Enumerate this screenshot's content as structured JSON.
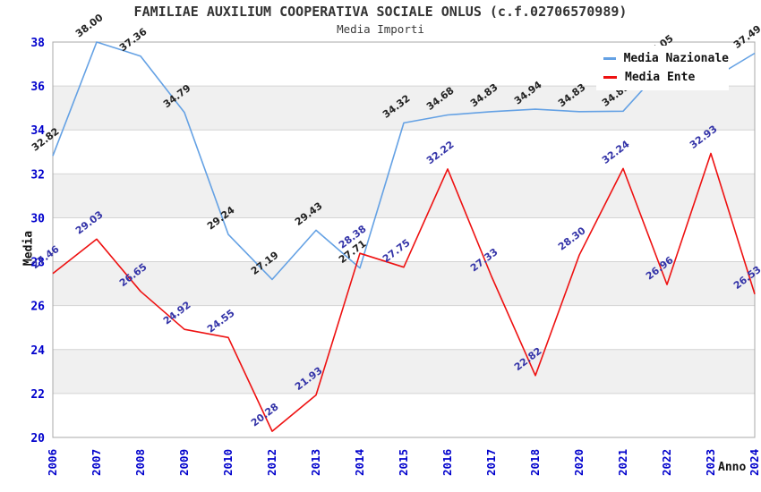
{
  "chart": {
    "title": "FAMILIAE AUXILIUM COOPERATIVA SOCIALE ONLUS (c.f.02706570989)",
    "subtitle": "Media Importi"
  },
  "chart_data": {
    "type": "line",
    "title": "FAMILIAE AUXILIUM COOPERATIVA SOCIALE ONLUS (c.f.02706570989)",
    "subtitle": "Media Importi",
    "xlabel": "Anno",
    "ylabel": "Media",
    "categories": [
      "2006",
      "2007",
      "2008",
      "2009",
      "2010",
      "2012",
      "2013",
      "2014",
      "2015",
      "2016",
      "2017",
      "2018",
      "2020",
      "2021",
      "2022",
      "2023",
      "2024"
    ],
    "series": [
      {
        "name": "Media Nazionale",
        "color": "#64a1e4",
        "label_color": "#222222",
        "values": [
          32.82,
          38.0,
          37.36,
          34.79,
          29.24,
          27.19,
          29.43,
          27.71,
          34.32,
          34.68,
          34.83,
          34.94,
          34.83,
          34.85,
          37.05,
          36.29,
          37.49
        ],
        "labels": [
          "32.82",
          "38.00",
          "37.36",
          "34.79",
          "29.24",
          "27.19",
          "29.43",
          "27.71",
          "34.32",
          "34.68",
          "34.83",
          "34.94",
          "34.83",
          "34.85",
          "37.05",
          "",
          "37.49"
        ]
      },
      {
        "name": "Media Ente",
        "color": "#ee1111",
        "label_color": "#3434a8",
        "values": [
          27.46,
          29.03,
          26.65,
          24.92,
          24.55,
          20.28,
          21.93,
          28.38,
          27.75,
          32.22,
          27.33,
          22.82,
          28.3,
          32.24,
          26.96,
          32.93,
          26.53
        ],
        "labels": [
          "27.46",
          "29.03",
          "26.65",
          "24.92",
          "24.55",
          "20.28",
          "21.93",
          "28.38",
          "27.75",
          "32.22",
          "27.33",
          "22.82",
          "28.30",
          "32.24",
          "26.96",
          "32.93",
          "26.53"
        ]
      }
    ],
    "ylim": [
      20,
      38
    ],
    "yticks": [
      20,
      22,
      24,
      26,
      28,
      30,
      32,
      34,
      36,
      38
    ],
    "gray_bands": [
      [
        22,
        24
      ],
      [
        26,
        28
      ],
      [
        30,
        32
      ],
      [
        34,
        36
      ]
    ],
    "grid": true,
    "legend_position": "top-right",
    "colors": {
      "band": "#f0f0f0",
      "grid": "#d4d4d4",
      "border": "#a8a8a8",
      "tick_label": "#0000cc",
      "axis_title": "#111111"
    }
  }
}
